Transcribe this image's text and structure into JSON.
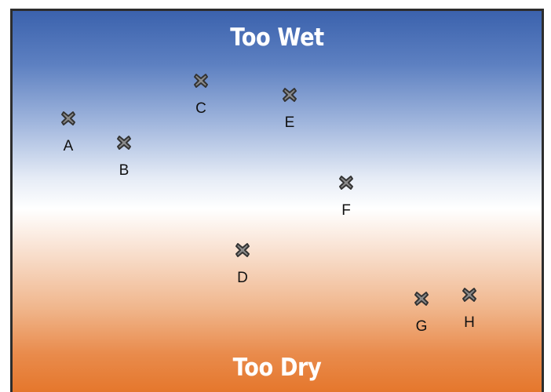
{
  "diagram": {
    "top_label": "Too Wet",
    "bottom_label": "Too Dry",
    "marker_icon": "x-mark-icon",
    "colors": {
      "wet": "#3b62ad",
      "neutral": "#ffffff",
      "dry": "#e5772c",
      "marker_fill": "#8a8a8a",
      "marker_stroke": "#333333"
    },
    "points": [
      {
        "label": "A"
      },
      {
        "label": "B"
      },
      {
        "label": "C"
      },
      {
        "label": "D"
      },
      {
        "label": "E"
      },
      {
        "label": "F"
      },
      {
        "label": "G"
      },
      {
        "label": "H"
      }
    ]
  }
}
